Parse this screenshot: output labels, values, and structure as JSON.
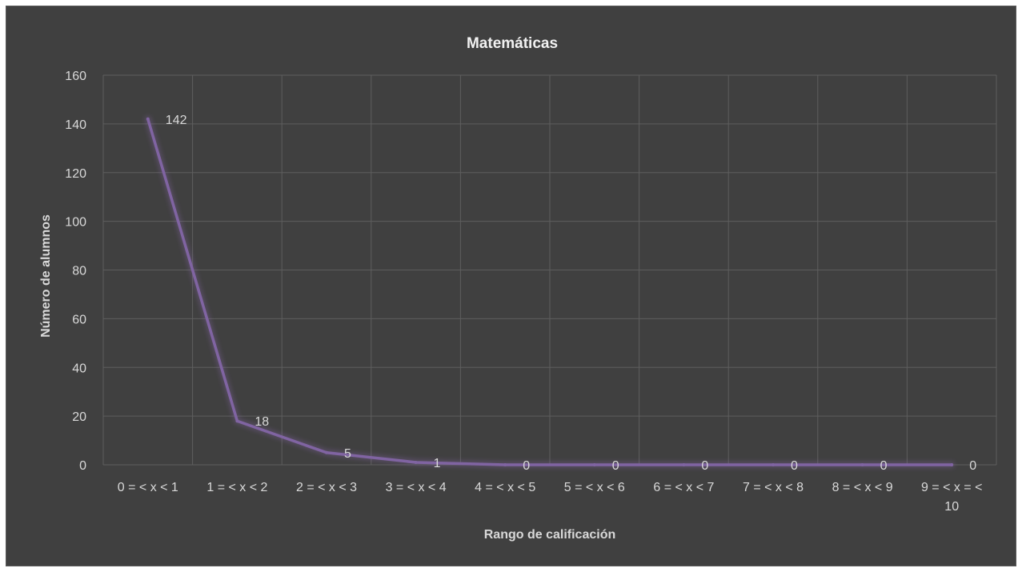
{
  "chart_data": {
    "type": "line",
    "title": "Matemáticas",
    "xlabel": "Rango de calificación",
    "ylabel": "Número de alumnos",
    "categories": [
      "0 = < x < 1",
      "1 = < x < 2",
      "2 = < x < 3",
      "3 = < x < 4",
      "4 = < x < 5",
      "5 = < x < 6",
      "6 = < x < 7",
      "7 = < x < 8",
      "8 = < x < 9",
      "9 = < x = < 10"
    ],
    "values": [
      142,
      18,
      5,
      1,
      0,
      0,
      0,
      0,
      0,
      0
    ],
    "ylim": [
      0,
      160
    ],
    "yticks": [
      0,
      20,
      40,
      60,
      80,
      100,
      120,
      140,
      160
    ],
    "grid": true,
    "legend": "none",
    "line_color": "#8064a2",
    "background_color": "#404040"
  }
}
